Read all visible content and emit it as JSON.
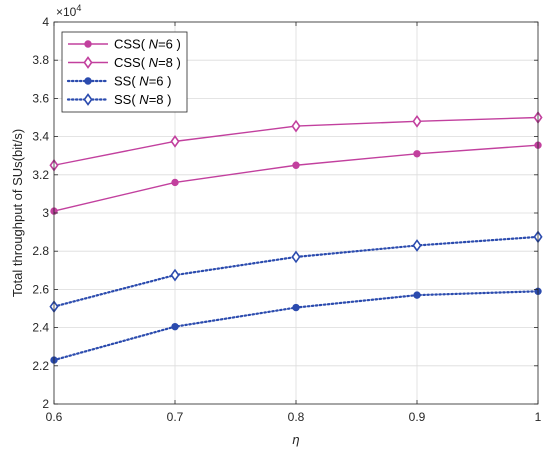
{
  "chart_data": {
    "type": "line",
    "x": [
      0.6,
      0.7,
      0.8,
      0.9,
      1.0
    ],
    "x_tick_labels": [
      "0.6",
      "0.7",
      "0.8",
      "0.9",
      "1"
    ],
    "y_tick_values": [
      2.0,
      2.2,
      2.4,
      2.6,
      2.8,
      3.0,
      3.2,
      3.4,
      3.6,
      3.8,
      4.0
    ],
    "y_tick_labels": [
      "2",
      "2.2",
      "2.4",
      "2.6",
      "2.8",
      "3",
      "3.2",
      "3.4",
      "3.6",
      "3.8",
      "4"
    ],
    "y_exponent_label": "×10",
    "y_exponent_power": "4",
    "xlabel": "η",
    "ylabel": "Total throughput of SUs(bit/s)",
    "xlim": [
      0.6,
      1.0
    ],
    "ylim": [
      2.0,
      4.0
    ],
    "grid": true,
    "legend_position": "top-left",
    "series": [
      {
        "name": "CSS( N=6 )",
        "legend_prefix": "CSS( ",
        "legend_var": "N",
        "legend_suffix": "=6 )",
        "values": [
          3.01,
          3.16,
          3.25,
          3.31,
          3.355
        ],
        "color": "#C2409E",
        "line_style": "solid",
        "marker": "circle"
      },
      {
        "name": "CSS( N=8 )",
        "legend_prefix": "CSS( ",
        "legend_var": "N",
        "legend_suffix": "=8 )",
        "values": [
          3.25,
          3.375,
          3.455,
          3.48,
          3.5
        ],
        "color": "#C2409E",
        "line_style": "solid",
        "marker": "diamond"
      },
      {
        "name": "SS( N=6 )",
        "legend_prefix": "SS( ",
        "legend_var": "N",
        "legend_suffix": "=6 )",
        "values": [
          2.23,
          2.405,
          2.505,
          2.57,
          2.59
        ],
        "color": "#2B4BAE",
        "line_style": "dotted",
        "marker": "circle"
      },
      {
        "name": "SS( N=8 )",
        "legend_prefix": "SS( ",
        "legend_var": "N",
        "legend_suffix": "=8 )",
        "values": [
          2.51,
          2.675,
          2.77,
          2.83,
          2.875
        ],
        "color": "#2B4BAE",
        "line_style": "dotted",
        "marker": "diamond"
      }
    ]
  }
}
